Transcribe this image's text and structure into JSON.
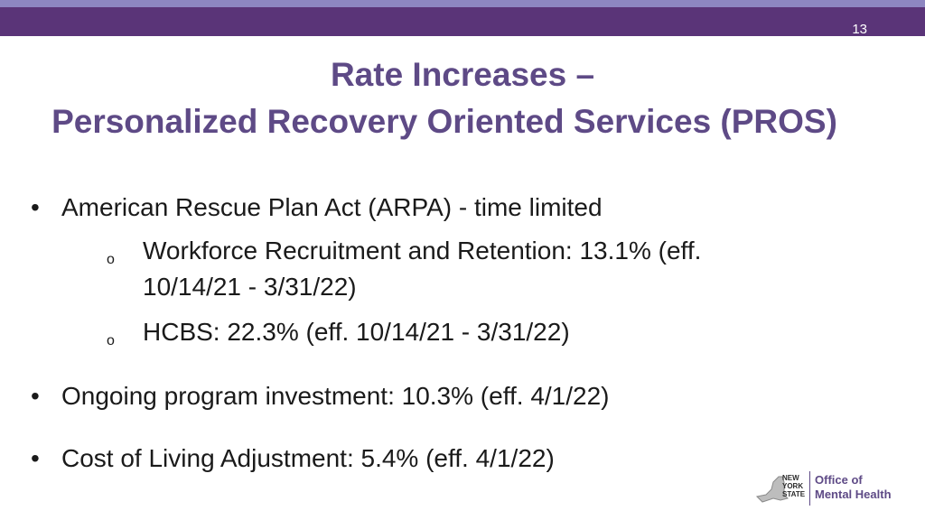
{
  "slide": {
    "number": "13",
    "title_line1": "Rate Increases –",
    "title_line2": "Personalized Recovery Oriented Services (PROS)"
  },
  "bullets": [
    {
      "text": "American Rescue Plan Act (ARPA) - time limited",
      "subitems": [
        {
          "line1": "Workforce Recruitment and Retention: 13.1% (eff.",
          "line2": "10/14/21 - 3/31/22)"
        },
        {
          "line1": "HCBS:  22.3% (eff. 10/14/21 - 3/31/22)"
        }
      ]
    },
    {
      "text": "Ongoing program investment:  10.3% (eff. 4/1/22)"
    },
    {
      "text": "Cost of Living Adjustment:  5.4% (eff. 4/1/22)"
    }
  ],
  "logo": {
    "state_line1": "NEW",
    "state_line2": "YORK",
    "state_line3": "STATE",
    "office_line1": "Office of",
    "office_line2": "Mental Health"
  },
  "colors": {
    "header_dark": "#5a3478",
    "header_light": "#8d86c1",
    "title": "#5e4a86"
  },
  "icons": {
    "bullet": "•",
    "sub_bullet": "o"
  }
}
